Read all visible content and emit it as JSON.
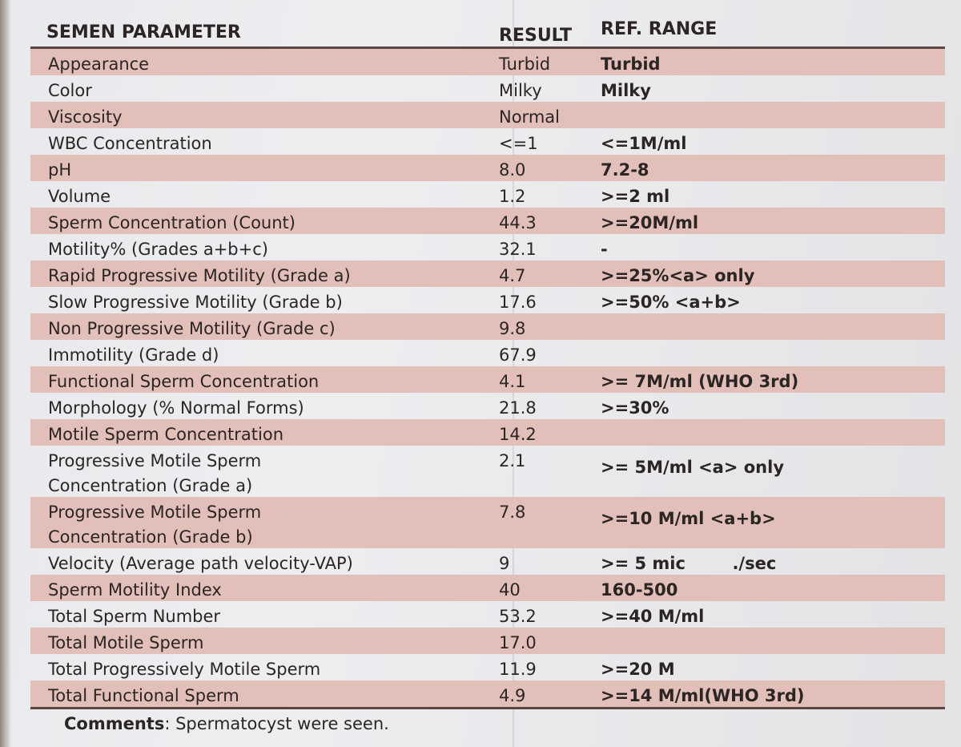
{
  "headers": {
    "parameter": "SEMEN PARAMETER",
    "result": "RESULT",
    "ref": "REF. RANGE"
  },
  "rows": [
    {
      "parameter": "Appearance",
      "result": "Turbid",
      "ref": "Turbid",
      "shaded": true
    },
    {
      "parameter": "Color",
      "result": "Milky",
      "ref": "Milky",
      "shaded": false
    },
    {
      "parameter": "Viscosity",
      "result": "Normal",
      "ref": "",
      "shaded": true
    },
    {
      "parameter": "WBC Concentration",
      "result": "<=1",
      "ref": "<=1M/ml",
      "shaded": false
    },
    {
      "parameter": "pH",
      "result": "8.0",
      "ref": "7.2-8",
      "shaded": true
    },
    {
      "parameter": "Volume",
      "result": "1.2",
      "ref": ">=2 ml",
      "shaded": false
    },
    {
      "parameter": "Sperm Concentration (Count)",
      "result": "44.3",
      "ref": ">=20M/ml",
      "shaded": true
    },
    {
      "parameter": "Motility% (Grades a+b+c)",
      "result": "32.1",
      "ref": "-",
      "shaded": false
    },
    {
      "parameter": "Rapid Progressive Motility (Grade a)",
      "result": "4.7",
      "ref": ">=25%<a> only",
      "shaded": true
    },
    {
      "parameter": "Slow Progressive Motility (Grade b)",
      "result": "17.6",
      "ref": ">=50% <a+b>",
      "shaded": false
    },
    {
      "parameter": "Non Progressive Motility (Grade c)",
      "result": "9.8",
      "ref": "",
      "shaded": true
    },
    {
      "parameter": "Immotility (Grade d)",
      "result": "67.9",
      "ref": "",
      "shaded": false
    },
    {
      "parameter": "Functional Sperm Concentration",
      "result": "4.1",
      "ref": ">= 7M/ml (WHO 3rd)",
      "shaded": true
    },
    {
      "parameter": "Morphology (% Normal Forms)",
      "result": "21.8",
      "ref": ">=30%",
      "shaded": false
    },
    {
      "parameter": "Motile Sperm Concentration",
      "result": "14.2",
      "ref": "",
      "shaded": true
    },
    {
      "parameter": "Progressive Motile Sperm\nConcentration (Grade a)",
      "result": "2.1",
      "ref": ">= 5M/ml <a> only",
      "shaded": false,
      "tall": true
    },
    {
      "parameter": "Progressive Motile Sperm\nConcentration (Grade b)",
      "result": "7.8",
      "ref": ">=10 M/ml <a+b>",
      "shaded": true,
      "tall": true
    },
    {
      "parameter": "Velocity (Average path velocity-VAP)",
      "result": "9",
      "ref": ">= 5 mic        ./sec",
      "shaded": false
    },
    {
      "parameter": "Sperm Motility Index",
      "result": "40",
      "ref": "160-500",
      "shaded": true
    },
    {
      "parameter": "Total Sperm Number",
      "result": "53.2",
      "ref": ">=40 M/ml",
      "shaded": false
    },
    {
      "parameter": "Total Motile Sperm",
      "result": "17.0",
      "ref": "",
      "shaded": true
    },
    {
      "parameter": "Total Progressively Motile Sperm",
      "result": "11.9",
      "ref": ">=20 M",
      "shaded": false
    },
    {
      "parameter": "Total Functional Sperm",
      "result": "4.9",
      "ref": ">=14 M/ml(WHO 3rd)",
      "shaded": true
    }
  ],
  "comments": {
    "label": "Comments",
    "text": ": Spermatocyst were seen."
  }
}
